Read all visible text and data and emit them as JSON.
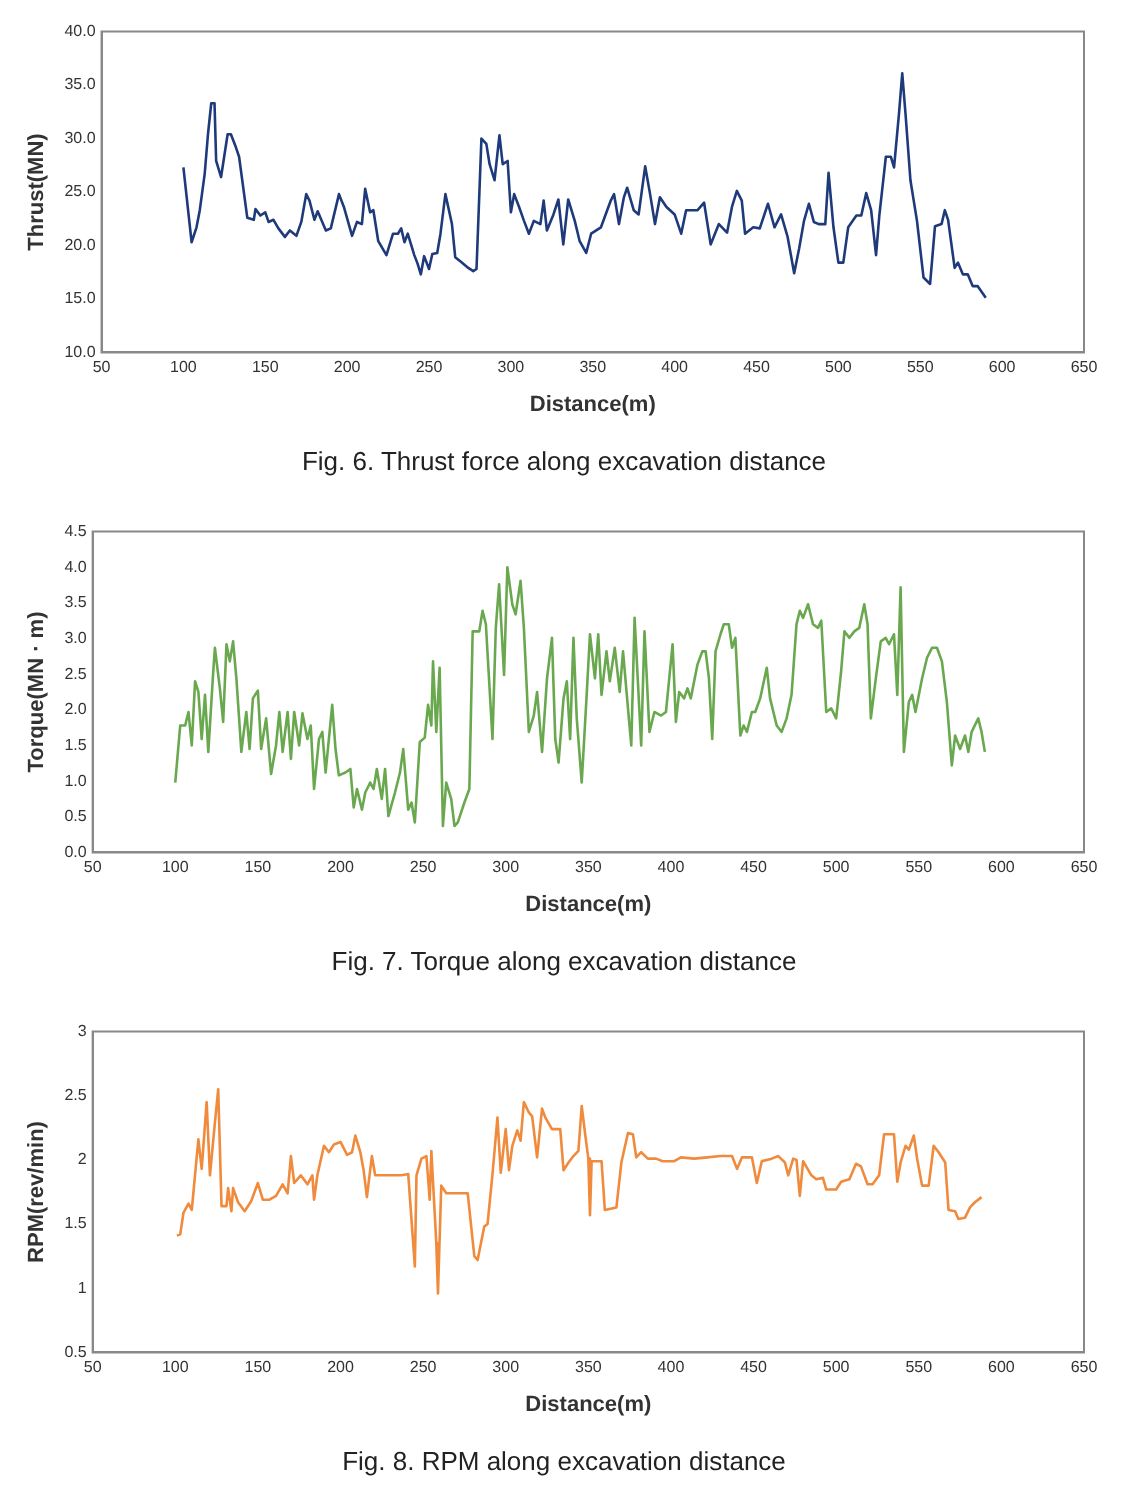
{
  "chart_data": [
    {
      "type": "line",
      "title": "Fig. 6. Thrust force along excavation distance",
      "xlabel": "Distance(m)",
      "ylabel": "Thrust(MN)",
      "color": "#1f3a7a",
      "grid": false,
      "xlim": [
        50,
        650
      ],
      "xticks": [
        50,
        100,
        150,
        200,
        250,
        300,
        350,
        400,
        450,
        500,
        550,
        600,
        650
      ],
      "ylim": [
        10,
        40
      ],
      "yticks": [
        {
          "value": 10,
          "label": "10.0"
        },
        {
          "value": 15,
          "label": "15.0"
        },
        {
          "value": 20,
          "label": "20.0"
        },
        {
          "value": 25,
          "label": "25.0"
        },
        {
          "value": 30,
          "label": "30.0"
        },
        {
          "value": 35,
          "label": "35.0"
        },
        {
          "value": 40,
          "label": "40.0"
        }
      ],
      "x": [
        100,
        105,
        108,
        110,
        113,
        115,
        117,
        119,
        120,
        123,
        127,
        129,
        132,
        134,
        139,
        143,
        144,
        147,
        150,
        152,
        155,
        158,
        162,
        165,
        169,
        172,
        175,
        177,
        180,
        182,
        187,
        190,
        195,
        198,
        203,
        206,
        209,
        211,
        214,
        216,
        219,
        224,
        228,
        231,
        233,
        235,
        237,
        241,
        243,
        245,
        247,
        250,
        252,
        255,
        257,
        260,
        264,
        266,
        270,
        274,
        277,
        279,
        282,
        285,
        287,
        290,
        293,
        295,
        298,
        300,
        302,
        305,
        308,
        311,
        314,
        318,
        320,
        322,
        326,
        329,
        332,
        335,
        339,
        342,
        346,
        349,
        355,
        361,
        363,
        366,
        369,
        371,
        375,
        378,
        382,
        385,
        388,
        391,
        395,
        400,
        404,
        407,
        414,
        418,
        422,
        427,
        432,
        435,
        438,
        441,
        443,
        448,
        452,
        457,
        461,
        465,
        469,
        473,
        476,
        479,
        482,
        485,
        488,
        492,
        494,
        497,
        500,
        503,
        506,
        511,
        514,
        517,
        520,
        523,
        525,
        529,
        532,
        534,
        537,
        539,
        541,
        544,
        548,
        552,
        556,
        559,
        563,
        565,
        567,
        571,
        573,
        576,
        579,
        582,
        585,
        590
      ],
      "values": [
        27.3,
        20.3,
        21.7,
        23.3,
        26.7,
        30.4,
        33.3,
        33.3,
        27.9,
        26.4,
        30.4,
        30.4,
        29.2,
        28.3,
        22.6,
        22.4,
        23.4,
        22.8,
        23.1,
        22.2,
        22.4,
        21.6,
        20.8,
        21.4,
        20.9,
        22.2,
        24.8,
        24.2,
        22.4,
        23.2,
        21.4,
        21.6,
        24.8,
        23.6,
        20.9,
        22.2,
        22.0,
        25.3,
        23.1,
        23.3,
        20.4,
        19.1,
        21.1,
        21.1,
        21.6,
        20.3,
        21.1,
        19.1,
        18.3,
        17.3,
        19.0,
        17.8,
        19.2,
        19.3,
        21.1,
        24.8,
        22.0,
        18.9,
        18.4,
        17.9,
        17.6,
        17.8,
        30.0,
        29.5,
        27.6,
        26.1,
        30.3,
        27.6,
        27.9,
        23.1,
        24.8,
        23.6,
        22.3,
        21.1,
        22.3,
        22.0,
        24.2,
        21.4,
        22.9,
        24.3,
        20.1,
        24.3,
        22.3,
        20.4,
        19.3,
        21.1,
        21.7,
        24.2,
        24.8,
        22.0,
        24.5,
        25.4,
        23.3,
        22.9,
        27.4,
        24.8,
        22.0,
        24.5,
        23.6,
        22.9,
        21.1,
        23.3,
        23.3,
        24.0,
        20.1,
        22.0,
        21.2,
        23.6,
        25.1,
        24.2,
        21.1,
        21.7,
        21.6,
        23.9,
        21.7,
        22.9,
        20.8,
        17.4,
        19.7,
        22.3,
        23.9,
        22.2,
        22.0,
        22.0,
        26.8,
        21.7,
        18.4,
        18.4,
        21.7,
        22.8,
        22.8,
        24.9,
        23.3,
        19.1,
        22.8,
        28.3,
        28.3,
        27.3,
        32.3,
        36.1,
        32.3,
        26.1,
        22.3,
        17.0,
        16.4,
        21.8,
        22.0,
        23.3,
        22.4,
        17.9,
        18.4,
        17.3,
        17.3,
        16.2,
        16.2,
        15.1
      ]
    },
    {
      "type": "line",
      "title": "Fig. 7. Torque along excavation distance",
      "xlabel": "Distance(m)",
      "ylabel": "Torque(MN · m)",
      "color": "#6aa84f",
      "grid": false,
      "xlim": [
        50,
        650
      ],
      "xticks": [
        50,
        100,
        150,
        200,
        250,
        300,
        350,
        400,
        450,
        500,
        550,
        600,
        650
      ],
      "ylim": [
        0,
        4.5
      ],
      "yticks": [
        {
          "value": 0,
          "label": "0.0"
        },
        {
          "value": 0.5,
          "label": "0.5"
        },
        {
          "value": 1,
          "label": "1.0"
        },
        {
          "value": 1.5,
          "label": "1.5"
        },
        {
          "value": 2,
          "label": "2.0"
        },
        {
          "value": 2.5,
          "label": "2.5"
        },
        {
          "value": 3,
          "label": "3.0"
        },
        {
          "value": 3.5,
          "label": "3.5"
        },
        {
          "value": 4,
          "label": "4.0"
        },
        {
          "value": 4.5,
          "label": "4.5"
        }
      ],
      "x": [
        100,
        103,
        106,
        108,
        110,
        112,
        114,
        116,
        118,
        120,
        123,
        124,
        127,
        129,
        131,
        133,
        135,
        137,
        140,
        143,
        145,
        147,
        150,
        152,
        155,
        158,
        161,
        163,
        165,
        168,
        170,
        172,
        175,
        177,
        180,
        182,
        184,
        187,
        189,
        191,
        195,
        197,
        199,
        203,
        206,
        208,
        210,
        213,
        215,
        218,
        220,
        222,
        225,
        227,
        229,
        233,
        236,
        238,
        241,
        243,
        245,
        248,
        251,
        253,
        255,
        256,
        258,
        260,
        262,
        264,
        267,
        269,
        271,
        275,
        278,
        280,
        284,
        286,
        288,
        292,
        294,
        296,
        299,
        301,
        304,
        306,
        309,
        311,
        314,
        317,
        319,
        322,
        325,
        328,
        330,
        332,
        335,
        337,
        339,
        341,
        343,
        346,
        349,
        351,
        354,
        356,
        358,
        361,
        363,
        366,
        369,
        371,
        374,
        376,
        378,
        382,
        384,
        387,
        390,
        394,
        397,
        401,
        403,
        405,
        408,
        410,
        412,
        416,
        419,
        421,
        423,
        425,
        427,
        430,
        432,
        435,
        437,
        439,
        442,
        444,
        446,
        449,
        451,
        454,
        458,
        460,
        464,
        467,
        470,
        473,
        476,
        478,
        480,
        483,
        486,
        489,
        491,
        494,
        497,
        500,
        503,
        505,
        508,
        511,
        514,
        517,
        519,
        521,
        524,
        527,
        530,
        532,
        535,
        537,
        539,
        541,
        544,
        546,
        548,
        552,
        555,
        558,
        561,
        564,
        567,
        570,
        572,
        575,
        578,
        580,
        582,
        586,
        588,
        590
      ],
      "values": [
        0.98,
        1.78,
        1.78,
        1.97,
        1.5,
        2.4,
        2.25,
        1.59,
        2.21,
        1.41,
        2.54,
        2.87,
        2.3,
        1.83,
        2.92,
        2.68,
        2.96,
        2.44,
        1.41,
        1.97,
        1.45,
        2.16,
        2.27,
        1.45,
        1.88,
        1.1,
        1.5,
        1.97,
        1.41,
        1.97,
        1.31,
        1.97,
        1.5,
        1.95,
        1.59,
        1.78,
        0.89,
        1.59,
        1.69,
        1.12,
        2.07,
        1.45,
        1.08,
        1.12,
        1.17,
        0.63,
        0.89,
        0.6,
        0.84,
        0.98,
        0.89,
        1.17,
        0.75,
        1.17,
        0.51,
        0.84,
        1.12,
        1.45,
        0.6,
        0.7,
        0.42,
        1.55,
        1.61,
        2.07,
        1.78,
        2.68,
        1.69,
        2.59,
        0.37,
        0.98,
        0.75,
        0.37,
        0.42,
        0.7,
        0.89,
        3.1,
        3.1,
        3.39,
        3.2,
        1.59,
        3.15,
        3.76,
        2.49,
        4.0,
        3.48,
        3.34,
        3.81,
        3.15,
        1.69,
        1.92,
        2.25,
        1.41,
        2.44,
        3.01,
        1.59,
        1.26,
        2.16,
        2.4,
        1.59,
        3.01,
        1.88,
        0.98,
        2.21,
        3.06,
        2.44,
        3.06,
        2.21,
        2.82,
        2.4,
        2.87,
        2.25,
        2.82,
        2.02,
        1.5,
        3.29,
        1.5,
        3.1,
        1.69,
        1.97,
        1.92,
        1.97,
        2.92,
        1.83,
        2.25,
        2.16,
        2.3,
        2.16,
        2.63,
        2.82,
        2.82,
        2.44,
        1.59,
        2.82,
        3.06,
        3.2,
        3.2,
        2.87,
        3.01,
        1.64,
        1.78,
        1.69,
        1.97,
        1.97,
        2.16,
        2.59,
        2.16,
        1.78,
        1.69,
        1.88,
        2.21,
        3.2,
        3.39,
        3.29,
        3.48,
        3.2,
        3.15,
        3.25,
        1.97,
        2.02,
        1.88,
        2.54,
        3.1,
        3.01,
        3.1,
        3.15,
        3.48,
        3.2,
        1.88,
        2.44,
        2.96,
        3.01,
        2.92,
        3.06,
        2.21,
        3.72,
        1.41,
        2.11,
        2.21,
        1.97,
        2.44,
        2.73,
        2.87,
        2.87,
        2.68,
        2.11,
        1.22,
        1.64,
        1.45,
        1.64,
        1.41,
        1.69,
        1.88,
        1.69,
        1.41
      ]
    },
    {
      "type": "line",
      "title": "Fig. 8. RPM along excavation distance",
      "xlabel": "Distance(m)",
      "ylabel": "RPM(rev/min)",
      "color": "#f08a3c",
      "grid": false,
      "xlim": [
        50,
        650
      ],
      "xticks": [
        50,
        100,
        150,
        200,
        250,
        300,
        350,
        400,
        450,
        500,
        550,
        600,
        650
      ],
      "ylim": [
        0.5,
        3
      ],
      "yticks": [
        0.5,
        1,
        1.5,
        2,
        2.5,
        3
      ],
      "x": [
        101,
        103,
        105,
        108,
        110,
        114,
        116,
        119,
        121,
        124,
        126,
        128,
        131,
        132,
        134,
        135,
        138,
        142,
        146,
        150,
        153,
        157,
        161,
        165,
        168,
        170,
        172,
        176,
        180,
        183,
        184,
        186,
        190,
        193,
        196,
        200,
        204,
        207,
        209,
        212,
        214,
        216,
        219,
        221,
        226,
        231,
        237,
        241,
        245,
        246,
        249,
        252,
        254,
        255,
        258,
        259,
        261,
        264,
        270,
        277,
        281,
        283,
        285,
        287,
        289,
        292,
        295,
        297,
        300,
        302,
        304,
        307,
        309,
        311,
        314,
        316,
        319,
        322,
        324,
        328,
        333,
        335,
        338,
        341,
        344,
        346,
        348,
        350,
        351,
        352,
        358,
        360,
        367,
        370,
        374,
        377,
        379,
        382,
        386,
        391,
        395,
        402,
        406,
        414,
        422,
        430,
        437,
        440,
        443,
        449,
        452,
        455,
        461,
        465,
        469,
        471,
        474,
        476,
        478,
        480,
        485,
        488,
        492,
        494,
        500,
        503,
        508,
        512,
        515,
        519,
        522,
        526,
        529,
        535,
        537,
        539,
        542,
        544,
        547,
        549,
        552,
        556,
        559,
        562,
        566,
        568,
        572,
        574,
        578,
        581,
        584,
        588
      ],
      "values": [
        1.41,
        1.42,
        1.59,
        1.66,
        1.61,
        2.16,
        1.93,
        2.45,
        1.88,
        2.29,
        2.55,
        1.64,
        1.64,
        1.78,
        1.6,
        1.78,
        1.67,
        1.6,
        1.68,
        1.82,
        1.69,
        1.69,
        1.72,
        1.81,
        1.74,
        2.03,
        1.82,
        1.88,
        1.81,
        1.88,
        1.69,
        1.88,
        2.11,
        2.06,
        2.12,
        2.14,
        2.04,
        2.06,
        2.19,
        2.06,
        1.92,
        1.71,
        2.03,
        1.88,
        1.88,
        1.88,
        1.88,
        1.89,
        1.17,
        1.88,
        2.01,
        2.03,
        1.69,
        2.07,
        1.35,
        0.96,
        1.8,
        1.74,
        1.74,
        1.74,
        1.25,
        1.22,
        1.35,
        1.48,
        1.5,
        1.89,
        2.33,
        1.9,
        2.24,
        1.92,
        2.11,
        2.23,
        2.15,
        2.45,
        2.37,
        2.34,
        2.02,
        2.4,
        2.33,
        2.24,
        2.24,
        1.92,
        1.98,
        2.03,
        2.07,
        2.42,
        2.21,
        2.01,
        1.57,
        1.99,
        1.99,
        1.61,
        1.63,
        1.98,
        2.21,
        2.2,
        2.02,
        2.06,
        2.01,
        2.01,
        1.99,
        1.99,
        2.02,
        2.01,
        2.02,
        2.03,
        2.03,
        1.93,
        2.02,
        2.02,
        1.82,
        1.99,
        2.01,
        2.03,
        1.98,
        1.88,
        2.01,
        2.0,
        1.72,
        1.99,
        1.88,
        1.85,
        1.86,
        1.77,
        1.77,
        1.83,
        1.85,
        1.97,
        1.95,
        1.81,
        1.81,
        1.88,
        2.2,
        2.2,
        1.83,
        1.98,
        2.11,
        2.08,
        2.19,
        2.01,
        1.8,
        1.8,
        2.11,
        2.06,
        1.98,
        1.61,
        1.6,
        1.54,
        1.55,
        1.63,
        1.67,
        1.71
      ]
    }
  ]
}
